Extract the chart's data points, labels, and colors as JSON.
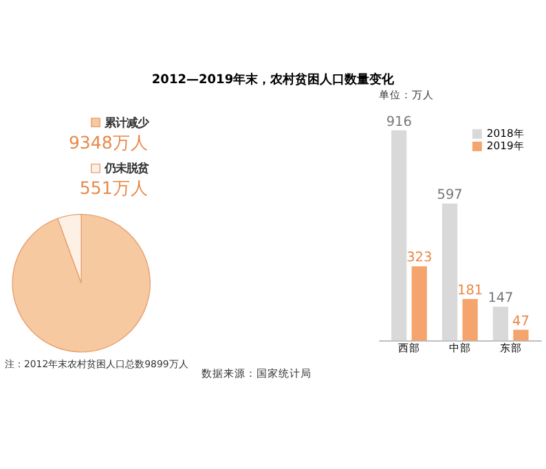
{
  "chart_data": [
    {
      "type": "pie",
      "title": "2012—2019年末，农村贫困人口数量变化",
      "categories": [
        "累计减少",
        "仍未脱贫"
      ],
      "values": [
        9348,
        551
      ],
      "value_labels": [
        "9348万人",
        "551万人"
      ],
      "colors": [
        "#f6c9a0",
        "#fdf1e6"
      ],
      "legend": "top right",
      "annotations": [
        "注：2012年末农村贫困人口总数9899万人"
      ]
    },
    {
      "type": "bar",
      "categories": [
        "西部",
        "中部",
        "东部"
      ],
      "data_labels": true,
      "legend": "top right",
      "series": [
        {
          "name": "2018年",
          "color": "#d9d9d9",
          "values": [
            916,
            597,
            147
          ]
        },
        {
          "name": "2019年",
          "color": "#f4a46c",
          "values": [
            323,
            181,
            47
          ]
        }
      ],
      "annotations": [
        "单位：万人",
        "数据来源：国家统计局"
      ]
    }
  ]
}
